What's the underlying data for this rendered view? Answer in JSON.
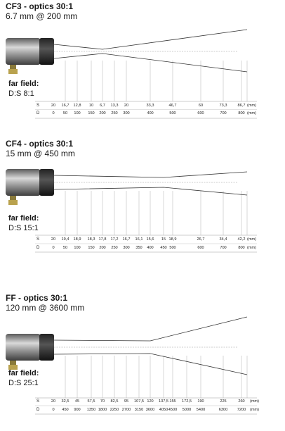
{
  "sections": [
    {
      "title": "CF3 - optics 30:1",
      "subtitle": "6.7 mm @ 200 mm",
      "far_field_label": "far field:",
      "ds_label": "D:S 8:1",
      "row_s_label": "S",
      "row_d_label": "D",
      "s_values": [
        "20",
        "16,7",
        "12,8",
        "10",
        "6,7",
        "13,3",
        "20",
        "33,3",
        "46,7",
        "60",
        "73,3",
        "86,7"
      ],
      "d_values": [
        "0",
        "50",
        "100",
        "150",
        "200",
        "250",
        "300",
        "400",
        "500",
        "600",
        "700",
        "800"
      ],
      "unit_s": "(mm)",
      "unit_d": "(mm)"
    },
    {
      "title": "CF4 - optics 30:1",
      "subtitle": "15 mm @ 450 mm",
      "far_field_label": "far field:",
      "ds_label": "D:S 15:1",
      "row_s_label": "S",
      "row_d_label": "D",
      "s_values": [
        "20",
        "19,4",
        "18,9",
        "18,3",
        "17,8",
        "17,2",
        "16,7",
        "16,1",
        "15,6",
        "15",
        "18,9",
        "26,7",
        "34,4",
        "42,2"
      ],
      "d_values": [
        "0",
        "50",
        "100",
        "150",
        "200",
        "250",
        "300",
        "350",
        "400",
        "450",
        "500",
        "600",
        "700",
        "800"
      ],
      "unit_s": "(mm)",
      "unit_d": "(mm)"
    },
    {
      "title": "FF - optics 30:1",
      "subtitle": "120 mm @ 3600 mm",
      "far_field_label": "far field:",
      "ds_label": "D:S 25:1",
      "row_s_label": "S",
      "row_d_label": "D",
      "s_values": [
        "20",
        "32,5",
        "45",
        "57,5",
        "70",
        "82,5",
        "95",
        "107,5",
        "120",
        "137,5",
        "155",
        "172,5",
        "190",
        "225",
        "260"
      ],
      "d_values": [
        "0",
        "450",
        "900",
        "1350",
        "1800",
        "2250",
        "2700",
        "3150",
        "3600",
        "4050",
        "4500",
        "5000",
        "5400",
        "6300",
        "7200"
      ],
      "unit_s": "(mm)",
      "unit_d": "(mm)"
    }
  ]
}
